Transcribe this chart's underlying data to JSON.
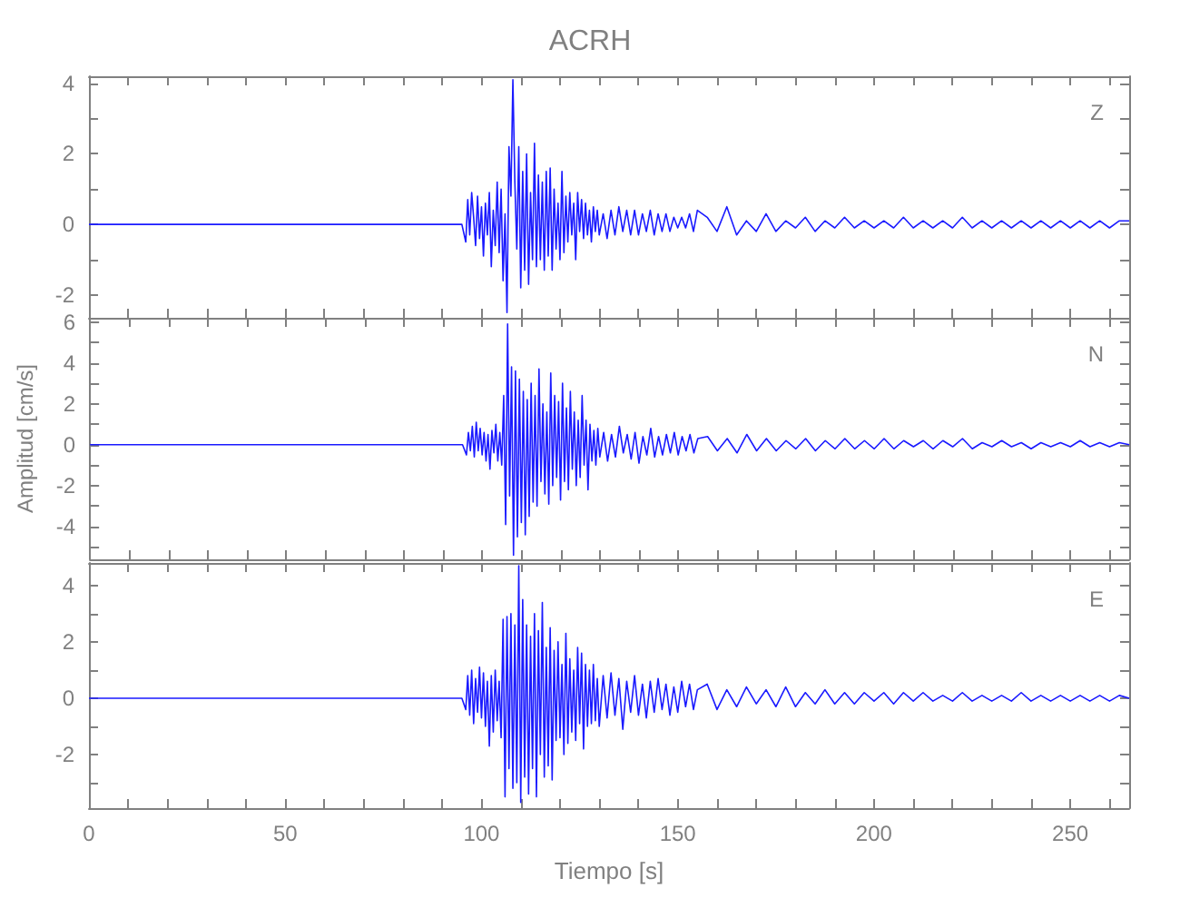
{
  "chart_data": [
    {
      "type": "line",
      "title": "ACRH",
      "annotations": [
        "Z"
      ],
      "tick_labels": "y",
      "grid": false,
      "x": [
        0,
        20,
        40,
        60,
        80,
        95,
        96,
        96.5,
        97,
        97.5,
        98,
        98.5,
        99,
        99.5,
        100,
        100.5,
        101,
        101.5,
        102,
        102.5,
        103,
        103.5,
        104,
        104.5,
        105,
        105.5,
        106,
        106.5,
        107,
        107.5,
        108,
        108.5,
        109,
        109.5,
        110,
        110.5,
        111,
        111.5,
        112,
        112.5,
        113,
        113.5,
        114,
        114.5,
        115,
        115.5,
        116,
        116.5,
        117,
        117.5,
        118,
        118.5,
        119,
        119.5,
        120,
        120.5,
        121,
        121.5,
        122,
        122.5,
        123,
        123.5,
        124,
        124.5,
        125,
        125.5,
        126,
        126.5,
        127,
        127.5,
        128,
        128.5,
        129,
        129.5,
        130,
        131,
        132,
        133,
        134,
        135,
        136,
        137,
        138,
        139,
        140,
        141,
        142,
        143,
        144,
        145,
        146,
        147,
        148,
        149,
        150,
        151,
        152,
        153,
        154,
        155,
        157.5,
        160,
        162.5,
        165,
        167.5,
        170,
        172.5,
        175,
        177.5,
        180,
        182.5,
        185,
        187.5,
        190,
        192.5,
        195,
        197.5,
        200,
        202.5,
        205,
        207.5,
        210,
        212.5,
        215,
        217.5,
        220,
        222.5,
        225,
        227.5,
        230,
        232.5,
        235,
        237.5,
        240,
        242.5,
        245,
        247.5,
        250,
        252.5,
        255,
        257.5,
        260,
        262.5,
        265
      ],
      "xlim": [
        0,
        265
      ],
      "xticks": [
        0,
        {
          "value": 10,
          "label": null
        },
        {
          "value": 20,
          "label": null
        },
        {
          "value": 30,
          "label": null
        },
        {
          "value": 40,
          "label": null
        },
        50,
        {
          "value": 60,
          "label": null
        },
        {
          "value": 70,
          "label": null
        },
        {
          "value": 80,
          "label": null
        },
        {
          "value": 90,
          "label": null
        },
        100,
        {
          "value": 110,
          "label": null
        },
        {
          "value": 120,
          "label": null
        },
        {
          "value": 130,
          "label": null
        },
        {
          "value": 140,
          "label": null
        },
        150,
        {
          "value": 160,
          "label": null
        },
        {
          "value": 170,
          "label": null
        },
        {
          "value": 180,
          "label": null
        },
        {
          "value": 190,
          "label": null
        },
        200,
        {
          "value": 210,
          "label": null
        },
        {
          "value": 220,
          "label": null
        },
        {
          "value": 230,
          "label": null
        },
        {
          "value": 240,
          "label": null
        },
        250,
        {
          "value": 260,
          "label": null
        }
      ],
      "ylim": [
        -2.65,
        4.2
      ],
      "yticks": [
        -2,
        {
          "value": -1,
          "label": null
        },
        0,
        {
          "value": 1,
          "label": null
        },
        2,
        {
          "value": 3,
          "label": null
        },
        4
      ],
      "series": [
        {
          "color": "#1a1aff",
          "values": [
            0,
            0,
            0,
            0,
            0,
            0,
            -0.5,
            0.7,
            -0.3,
            0.9,
            0.2,
            -0.6,
            0.8,
            -0.4,
            0.5,
            -0.9,
            0.6,
            -0.3,
            0.9,
            -1.2,
            0.4,
            -0.6,
            1.2,
            -0.8,
            1.0,
            -1.6,
            0.3,
            -2.5,
            2.2,
            0.8,
            4.1,
            1.2,
            -0.7,
            2.2,
            -1.8,
            1.5,
            -1.3,
            2.0,
            -1.7,
            0.9,
            -1.0,
            2.3,
            -1.2,
            1.4,
            -1.0,
            1.2,
            -1.3,
            1.5,
            -0.9,
            1.6,
            -1.3,
            1.0,
            -0.7,
            0.6,
            -1.0,
            1.5,
            -0.8,
            0.8,
            -0.5,
            0.9,
            -0.3,
            0.6,
            -1.0,
            0.9,
            -0.2,
            0.7,
            -0.4,
            0.6,
            -0.3,
            0.4,
            -0.5,
            0.5,
            -0.2,
            0.4,
            -0.3,
            0.3,
            -0.4,
            0.4,
            -0.3,
            0.5,
            -0.2,
            0.4,
            -0.3,
            0.4,
            -0.3,
            0.3,
            -0.2,
            0.4,
            -0.3,
            0.3,
            -0.2,
            0.3,
            -0.2,
            0.2,
            -0.1,
            0.2,
            -0.1,
            0.3,
            -0.2,
            0.4,
            0.2,
            -0.2,
            0.5,
            -0.3,
            0.1,
            -0.2,
            0.3,
            -0.2,
            0.1,
            -0.1,
            0.2,
            -0.2,
            0.1,
            -0.1,
            0.2,
            -0.1,
            0.1,
            -0.1,
            0.1,
            -0.1,
            0.2,
            -0.1,
            0.1,
            -0.1,
            0.1,
            -0.1,
            0.2,
            -0.1,
            0.1,
            -0.1,
            0.1,
            -0.1,
            0.1,
            -0.1,
            0.1,
            -0.1,
            0.1,
            -0.1,
            0.1,
            -0.1,
            0.1,
            -0.1,
            0.1,
            0.1
          ]
        }
      ]
    },
    {
      "type": "line",
      "ylabel": "Amplitud [cm/s]",
      "annotations": [
        "N"
      ],
      "tick_labels": "y",
      "grid": false,
      "x": [
        0,
        20,
        40,
        60,
        80,
        95,
        96,
        96.5,
        97,
        97.5,
        98,
        98.5,
        99,
        99.5,
        100,
        100.5,
        101,
        101.5,
        102,
        102.5,
        103,
        103.5,
        104,
        104.5,
        105,
        105.5,
        106,
        106.5,
        107,
        107.5,
        108,
        108.5,
        109,
        109.5,
        110,
        110.5,
        111,
        111.5,
        112,
        112.5,
        113,
        113.5,
        114,
        114.5,
        115,
        115.5,
        116,
        116.5,
        117,
        117.5,
        118,
        118.5,
        119,
        119.5,
        120,
        120.5,
        121,
        121.5,
        122,
        122.5,
        123,
        123.5,
        124,
        124.5,
        125,
        125.5,
        126,
        126.5,
        127,
        127.5,
        128,
        128.5,
        129,
        129.5,
        130,
        131,
        132,
        133,
        134,
        135,
        136,
        137,
        138,
        139,
        140,
        141,
        142,
        143,
        144,
        145,
        146,
        147,
        148,
        149,
        150,
        151,
        152,
        153,
        154,
        155,
        157.5,
        160,
        162.5,
        165,
        167.5,
        170,
        172.5,
        175,
        177.5,
        180,
        182.5,
        185,
        187.5,
        190,
        192.5,
        195,
        197.5,
        200,
        202.5,
        205,
        207.5,
        210,
        212.5,
        215,
        217.5,
        220,
        222.5,
        225,
        227.5,
        230,
        232.5,
        235,
        237.5,
        240,
        242.5,
        245,
        247.5,
        250,
        252.5,
        255,
        257.5,
        260,
        262.5,
        265
      ],
      "xlim": [
        0,
        265
      ],
      "xticks": [
        0,
        {
          "value": 10,
          "label": null
        },
        {
          "value": 20,
          "label": null
        },
        {
          "value": 30,
          "label": null
        },
        {
          "value": 40,
          "label": null
        },
        50,
        {
          "value": 60,
          "label": null
        },
        {
          "value": 70,
          "label": null
        },
        {
          "value": 80,
          "label": null
        },
        {
          "value": 90,
          "label": null
        },
        100,
        {
          "value": 110,
          "label": null
        },
        {
          "value": 120,
          "label": null
        },
        {
          "value": 130,
          "label": null
        },
        {
          "value": 140,
          "label": null
        },
        150,
        {
          "value": 160,
          "label": null
        },
        {
          "value": 170,
          "label": null
        },
        {
          "value": 180,
          "label": null
        },
        {
          "value": 190,
          "label": null
        },
        200,
        {
          "value": 210,
          "label": null
        },
        {
          "value": 220,
          "label": null
        },
        {
          "value": 230,
          "label": null
        },
        {
          "value": 240,
          "label": null
        },
        250,
        {
          "value": 260,
          "label": null
        }
      ],
      "ylim": [
        -5.6,
        6.2
      ],
      "yticks": [
        {
          "value": -5,
          "label": null
        },
        -4,
        {
          "value": -3,
          "label": null
        },
        -2,
        {
          "value": -1,
          "label": null
        },
        0,
        {
          "value": 1,
          "label": null
        },
        2,
        {
          "value": 3,
          "label": null
        },
        4,
        {
          "value": 5,
          "label": null
        },
        6
      ],
      "series": [
        {
          "color": "#1a1aff",
          "values": [
            0,
            0,
            0,
            0,
            0,
            0,
            -0.5,
            0.6,
            -0.3,
            0.9,
            -0.6,
            1.1,
            -0.3,
            0.8,
            -0.5,
            0.6,
            -0.8,
            0.5,
            -1.2,
            0.7,
            -0.4,
            1.0,
            -0.8,
            0.6,
            -1.0,
            2.4,
            -3.9,
            5.9,
            -2.5,
            3.8,
            -5.4,
            3.6,
            -4.5,
            3.2,
            -3.8,
            2.6,
            -4.4,
            2.2,
            -3.5,
            3.0,
            -2.8,
            2.4,
            -3.0,
            3.7,
            -1.8,
            2.0,
            -2.4,
            1.6,
            -2.9,
            3.5,
            -2.0,
            2.4,
            -1.6,
            2.1,
            -2.7,
            3.0,
            -1.8,
            1.8,
            -2.2,
            2.6,
            -1.2,
            1.6,
            -2.0,
            1.2,
            -1.6,
            2.4,
            -1.0,
            1.2,
            -2.2,
            1.0,
            -0.8,
            0.7,
            -1.0,
            0.8,
            -0.6,
            0.6,
            -0.8,
            0.5,
            -0.6,
            0.9,
            -0.4,
            0.5,
            -0.7,
            0.6,
            -0.9,
            0.4,
            -0.5,
            0.8,
            -0.6,
            0.4,
            -0.5,
            0.5,
            -0.4,
            0.6,
            -0.5,
            0.4,
            -0.3,
            0.5,
            -0.4,
            0.3,
            0.4,
            -0.3,
            0.3,
            -0.4,
            0.5,
            -0.3,
            0.3,
            -0.3,
            0.2,
            -0.2,
            0.3,
            -0.3,
            0.2,
            -0.2,
            0.3,
            -0.2,
            0.2,
            -0.2,
            0.3,
            -0.2,
            0.2,
            -0.1,
            0.2,
            -0.2,
            0.2,
            -0.1,
            0.3,
            -0.2,
            0.1,
            -0.1,
            0.2,
            -0.1,
            0.1,
            -0.2,
            0.1,
            -0.1,
            0.1,
            -0.1,
            0.2,
            -0.1,
            0.1,
            -0.1,
            0.1,
            0
          ]
        }
      ]
    },
    {
      "type": "line",
      "xlabel": "Tiempo [s]",
      "annotations": [
        "E"
      ],
      "grid": false,
      "x": [
        0,
        20,
        40,
        60,
        80,
        95,
        96,
        96.5,
        97,
        97.5,
        98,
        98.5,
        99,
        99.5,
        100,
        100.5,
        101,
        101.5,
        102,
        102.5,
        103,
        103.5,
        104,
        104.5,
        105,
        105.5,
        106,
        106.5,
        107,
        107.5,
        108,
        108.5,
        109,
        109.5,
        110,
        110.5,
        111,
        111.5,
        112,
        112.5,
        113,
        113.5,
        114,
        114.5,
        115,
        115.5,
        116,
        116.5,
        117,
        117.5,
        118,
        118.5,
        119,
        119.5,
        120,
        120.5,
        121,
        121.5,
        122,
        122.5,
        123,
        123.5,
        124,
        124.5,
        125,
        125.5,
        126,
        126.5,
        127,
        127.5,
        128,
        128.5,
        129,
        129.5,
        130,
        131,
        132,
        133,
        134,
        135,
        136,
        137,
        138,
        139,
        140,
        141,
        142,
        143,
        144,
        145,
        146,
        147,
        148,
        149,
        150,
        151,
        152,
        153,
        154,
        155,
        157.5,
        160,
        162.5,
        165,
        167.5,
        170,
        172.5,
        175,
        177.5,
        180,
        182.5,
        185,
        187.5,
        190,
        192.5,
        195,
        197.5,
        200,
        202.5,
        205,
        207.5,
        210,
        212.5,
        215,
        217.5,
        220,
        222.5,
        225,
        227.5,
        230,
        232.5,
        235,
        237.5,
        240,
        242.5,
        245,
        247.5,
        250,
        252.5,
        255,
        257.5,
        260,
        262.5,
        265
      ],
      "xlim": [
        0,
        265
      ],
      "xticks": [
        0,
        {
          "value": 10,
          "label": null
        },
        {
          "value": 20,
          "label": null
        },
        {
          "value": 30,
          "label": null
        },
        {
          "value": 40,
          "label": null
        },
        50,
        {
          "value": 60,
          "label": null
        },
        {
          "value": 70,
          "label": null
        },
        {
          "value": 80,
          "label": null
        },
        {
          "value": 90,
          "label": null
        },
        100,
        {
          "value": 110,
          "label": null
        },
        {
          "value": 120,
          "label": null
        },
        {
          "value": 130,
          "label": null
        },
        {
          "value": 140,
          "label": null
        },
        150,
        {
          "value": 160,
          "label": null
        },
        {
          "value": 170,
          "label": null
        },
        {
          "value": 180,
          "label": null
        },
        {
          "value": 190,
          "label": null
        },
        200,
        {
          "value": 210,
          "label": null
        },
        {
          "value": 220,
          "label": null
        },
        {
          "value": 230,
          "label": null
        },
        {
          "value": 240,
          "label": null
        },
        250,
        {
          "value": 260,
          "label": null
        }
      ],
      "ylim": [
        -3.9,
        4.8
      ],
      "yticks": [
        {
          "value": -3,
          "label": null
        },
        -2,
        {
          "value": -1,
          "label": null
        },
        0,
        {
          "value": 1,
          "label": null
        },
        2,
        {
          "value": 3,
          "label": null
        },
        4
      ],
      "series": [
        {
          "color": "#1a1aff",
          "values": [
            0,
            0,
            0,
            0,
            0,
            0,
            -0.4,
            0.8,
            -0.6,
            1.0,
            -0.9,
            0.7,
            -0.5,
            1.1,
            -0.7,
            0.9,
            -1.0,
            0.6,
            -1.7,
            0.8,
            -1.2,
            1.0,
            -0.8,
            0.6,
            -1.4,
            2.8,
            -3.5,
            2.9,
            -2.5,
            3.0,
            -3.2,
            2.6,
            -3.0,
            4.7,
            -3.7,
            3.5,
            -2.8,
            2.6,
            -3.4,
            2.2,
            -2.5,
            3.0,
            -3.5,
            2.4,
            -2.0,
            3.4,
            -2.8,
            1.8,
            -2.4,
            2.5,
            -2.9,
            1.7,
            -1.5,
            2.0,
            -1.4,
            1.2,
            -2.0,
            2.3,
            -1.6,
            1.4,
            -1.2,
            1.0,
            -1.5,
            1.8,
            -0.9,
            1.6,
            -1.8,
            1.2,
            -1.0,
            1.0,
            -0.9,
            1.2,
            -0.8,
            0.7,
            -1.0,
            0.8,
            -0.7,
            0.9,
            -0.6,
            0.7,
            -1.1,
            0.6,
            -0.5,
            0.8,
            -0.6,
            0.5,
            -0.7,
            0.6,
            -0.5,
            0.7,
            -0.4,
            0.5,
            -0.6,
            0.4,
            -0.5,
            0.6,
            -0.3,
            0.5,
            -0.4,
            0.3,
            0.5,
            -0.4,
            0.3,
            -0.3,
            0.4,
            -0.2,
            0.3,
            -0.3,
            0.4,
            -0.3,
            0.2,
            -0.2,
            0.3,
            -0.2,
            0.2,
            -0.2,
            0.2,
            -0.1,
            0.2,
            -0.2,
            0.2,
            -0.1,
            0.2,
            -0.1,
            0.1,
            -0.1,
            0.2,
            -0.1,
            0.1,
            -0.1,
            0.1,
            -0.1,
            0.2,
            -0.1,
            0.1,
            -0.1,
            0.1,
            -0.1,
            0.1,
            -0.1,
            0.1,
            -0.1,
            0.1,
            0
          ]
        }
      ]
    }
  ]
}
